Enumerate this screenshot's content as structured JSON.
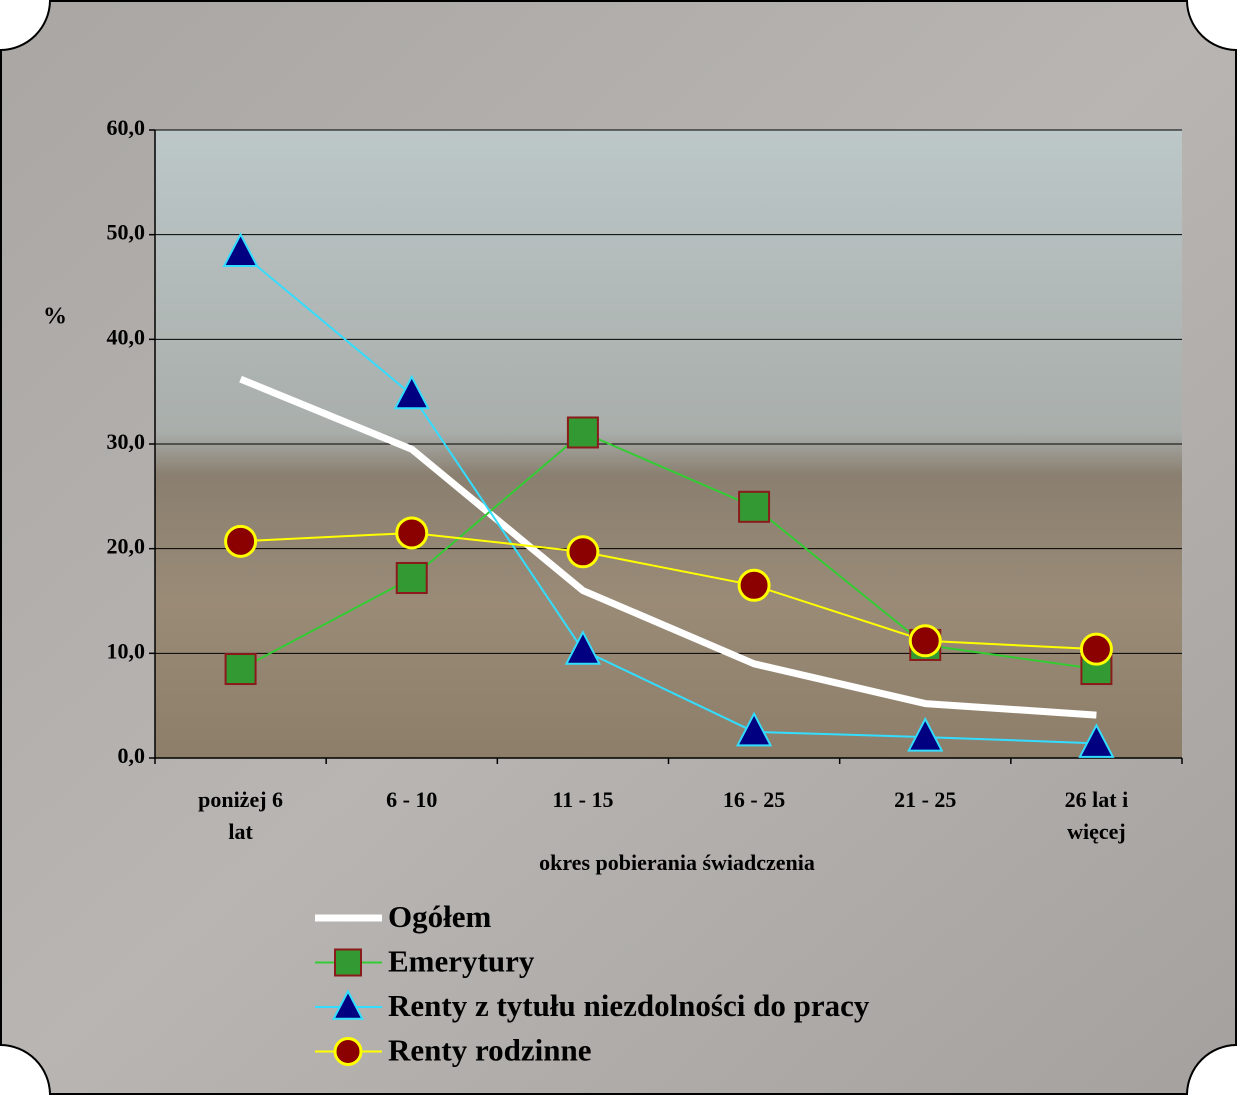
{
  "chart_data": {
    "type": "line",
    "y_label": "%",
    "x_label": "okres pobierania świadczenia",
    "categories": [
      "poniżej 6 lat",
      "6 - 10",
      "11 - 15",
      "16 - 25",
      "21 - 25",
      "26 lat i więcej"
    ],
    "ylim": [
      0,
      60
    ],
    "yticks": [
      {
        "value": 0,
        "label": "0,0"
      },
      {
        "value": 10,
        "label": "10,0"
      },
      {
        "value": 20,
        "label": "20,0"
      },
      {
        "value": 30,
        "label": "30,0"
      },
      {
        "value": 40,
        "label": "40,0"
      },
      {
        "value": 50,
        "label": "50,0"
      },
      {
        "value": 60,
        "label": "60,0"
      }
    ],
    "grid": true,
    "series": [
      {
        "name": "Ogółem",
        "color": "#ffffff",
        "marker": "none",
        "values": [
          36.2,
          29.5,
          16.0,
          9.0,
          5.2,
          4.1
        ]
      },
      {
        "name": "Emerytury",
        "color": "#33cc33",
        "marker": "square",
        "marker_fill": "#339933",
        "marker_stroke": "#8b1a1a",
        "values": [
          8.5,
          17.2,
          31.1,
          24.0,
          10.8,
          8.5
        ]
      },
      {
        "name": "Renty z tytułu niezdolności do pracy",
        "color": "#33ddff",
        "marker": "triangle",
        "marker_fill": "#000080",
        "marker_stroke": "#33ddff",
        "values": [
          48.3,
          34.7,
          10.3,
          2.5,
          2.0,
          1.4
        ]
      },
      {
        "name": "Renty rodzinne",
        "color": "#ffff00",
        "marker": "circle",
        "marker_fill": "#8b0000",
        "marker_stroke": "#ffff00",
        "values": [
          20.7,
          21.5,
          19.7,
          16.5,
          11.2,
          10.4
        ]
      }
    ]
  }
}
